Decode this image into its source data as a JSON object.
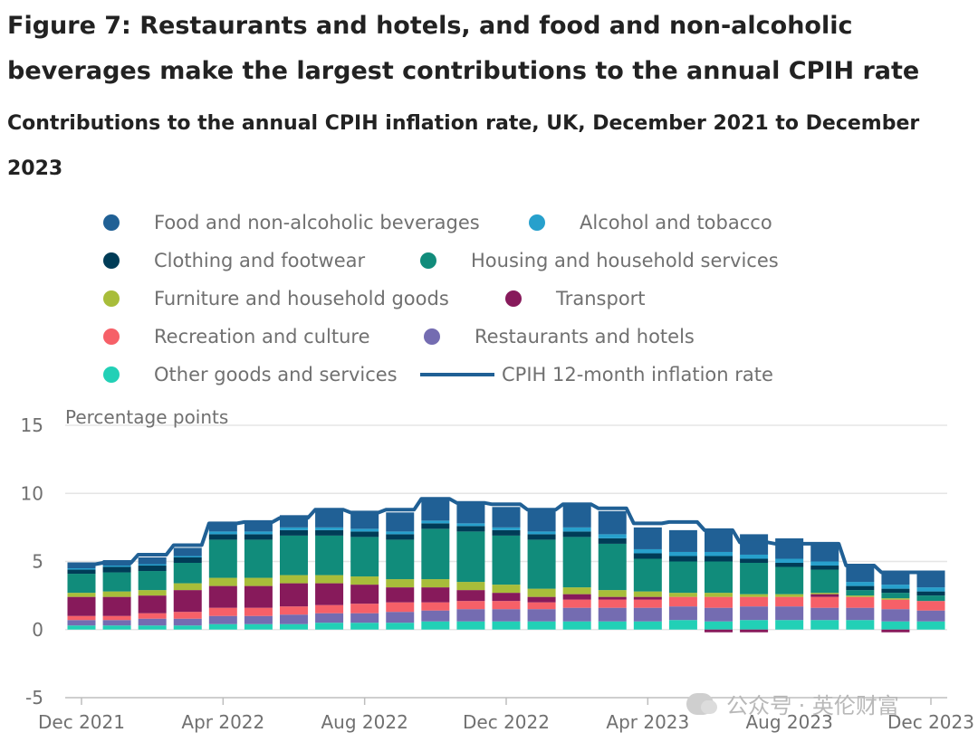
{
  "figure_title": "Figure 7: Restaurants and hotels, and food and non-alcoholic beverages make the largest contributions to the annual CPIH rate",
  "watermark": "公众号 · 英伦财富",
  "colors": {
    "food": "#206095",
    "alcohol": "#27a0cc",
    "clothing": "#003c57",
    "housing": "#118c7b",
    "furniture": "#a8bd3a",
    "transport": "#871a5b",
    "recreation": "#f66068",
    "restaurants": "#746cb1",
    "other": "#22d0b6",
    "line": "#206095",
    "grid": "#e5e5e5",
    "axis": "#bdbdbd"
  },
  "chart_data": {
    "type": "bar",
    "stacked": true,
    "title": "Contributions to the annual CPIH inflation rate, UK, December 2021 to December 2023",
    "ylabel": "Percentage points",
    "xlabel": "",
    "ylim": [
      -5,
      15
    ],
    "yticks": [
      "15",
      "10",
      "5",
      "0",
      "-5"
    ],
    "ytick_values": [
      15,
      10,
      5,
      0,
      -5
    ],
    "categories": [
      "Dec 2021",
      "Jan 2022",
      "Feb 2022",
      "Mar 2022",
      "Apr 2022",
      "May 2022",
      "Jun 2022",
      "Jul 2022",
      "Aug 2022",
      "Sep 2022",
      "Oct 2022",
      "Nov 2022",
      "Dec 2022",
      "Jan 2023",
      "Feb 2023",
      "Mar 2023",
      "Apr 2023",
      "May 2023",
      "Jun 2023",
      "Jul 2023",
      "Aug 2023",
      "Sep 2023",
      "Oct 2023",
      "Nov 2023",
      "Dec 2023"
    ],
    "xtick_labels": [
      {
        "index": 0,
        "label": "Dec 2021"
      },
      {
        "index": 4,
        "label": "Apr 2022"
      },
      {
        "index": 8,
        "label": "Aug 2022"
      },
      {
        "index": 12,
        "label": "Dec 2022"
      },
      {
        "index": 16,
        "label": "Apr 2023"
      },
      {
        "index": 20,
        "label": "Aug 2023"
      },
      {
        "index": 24,
        "label": "Dec 2023"
      }
    ],
    "legend_position": "top",
    "series": [
      {
        "key": "other",
        "name": "Other goods and services",
        "values": [
          0.3,
          0.3,
          0.3,
          0.3,
          0.4,
          0.4,
          0.4,
          0.5,
          0.5,
          0.5,
          0.6,
          0.6,
          0.6,
          0.6,
          0.6,
          0.6,
          0.6,
          0.7,
          0.6,
          0.7,
          0.7,
          0.7,
          0.7,
          0.6,
          0.6
        ]
      },
      {
        "key": "restaurants",
        "name": "Restaurants and hotels",
        "values": [
          0.4,
          0.4,
          0.5,
          0.5,
          0.6,
          0.6,
          0.7,
          0.7,
          0.7,
          0.8,
          0.8,
          0.9,
          0.9,
          0.9,
          1.0,
          1.0,
          1.0,
          1.0,
          1.0,
          1.0,
          1.0,
          0.9,
          0.9,
          0.9,
          0.8
        ]
      },
      {
        "key": "recreation",
        "name": "Recreation and culture",
        "values": [
          0.3,
          0.3,
          0.4,
          0.5,
          0.6,
          0.6,
          0.6,
          0.6,
          0.7,
          0.7,
          0.6,
          0.6,
          0.6,
          0.5,
          0.6,
          0.6,
          0.6,
          0.7,
          0.8,
          0.7,
          0.7,
          0.8,
          0.8,
          0.7,
          0.7
        ]
      },
      {
        "key": "transport",
        "name": "Transport",
        "values": [
          1.4,
          1.4,
          1.3,
          1.6,
          1.6,
          1.6,
          1.7,
          1.6,
          1.4,
          1.1,
          1.1,
          0.8,
          0.6,
          0.4,
          0.4,
          0.2,
          0.2,
          0.0,
          -0.2,
          -0.2,
          0.0,
          0.2,
          0.0,
          -0.2,
          0.0
        ]
      },
      {
        "key": "furniture",
        "name": "Furniture and household goods",
        "values": [
          0.3,
          0.4,
          0.4,
          0.5,
          0.6,
          0.6,
          0.6,
          0.6,
          0.6,
          0.6,
          0.6,
          0.6,
          0.6,
          0.6,
          0.5,
          0.5,
          0.4,
          0.3,
          0.3,
          0.2,
          0.2,
          0.1,
          0.1,
          0.1,
          0.0
        ]
      },
      {
        "key": "housing",
        "name": "Housing and household services",
        "values": [
          1.4,
          1.4,
          1.4,
          1.5,
          2.8,
          2.8,
          2.9,
          2.9,
          2.9,
          2.9,
          3.7,
          3.7,
          3.6,
          3.6,
          3.7,
          3.4,
          2.4,
          2.3,
          2.3,
          2.3,
          2.0,
          1.7,
          0.4,
          0.4,
          0.4
        ]
      },
      {
        "key": "clothing",
        "name": "Clothing and footwear",
        "values": [
          0.3,
          0.4,
          0.4,
          0.4,
          0.4,
          0.4,
          0.4,
          0.4,
          0.4,
          0.4,
          0.4,
          0.4,
          0.4,
          0.4,
          0.4,
          0.4,
          0.4,
          0.4,
          0.4,
          0.3,
          0.3,
          0.3,
          0.3,
          0.3,
          0.3
        ]
      },
      {
        "key": "alcohol",
        "name": "Alcohol and tobacco",
        "values": [
          0.1,
          0.1,
          0.1,
          0.1,
          0.2,
          0.2,
          0.2,
          0.2,
          0.2,
          0.2,
          0.2,
          0.2,
          0.2,
          0.2,
          0.3,
          0.3,
          0.3,
          0.3,
          0.3,
          0.3,
          0.3,
          0.3,
          0.3,
          0.3,
          0.3
        ]
      },
      {
        "key": "food",
        "name": "Food and non-alcoholic beverages",
        "values": [
          0.4,
          0.4,
          0.5,
          0.6,
          0.7,
          0.8,
          0.9,
          1.2,
          1.3,
          1.4,
          1.5,
          1.4,
          1.5,
          1.6,
          1.8,
          1.7,
          1.6,
          1.6,
          1.6,
          1.5,
          1.5,
          1.4,
          1.2,
          1.0,
          1.0
        ]
      }
    ],
    "line": {
      "key": "line",
      "name": "CPIH 12-month inflation rate",
      "values": [
        4.8,
        4.9,
        5.5,
        6.2,
        7.8,
        7.9,
        8.2,
        8.8,
        8.6,
        8.8,
        9.6,
        9.3,
        9.2,
        8.8,
        9.2,
        8.9,
        7.8,
        7.9,
        7.3,
        6.4,
        6.3,
        6.3,
        4.7,
        4.2,
        4.2
      ]
    },
    "legend": [
      {
        "key": "food",
        "name": "Food and non-alcoholic beverages",
        "kind": "dot"
      },
      {
        "key": "alcohol",
        "name": "Alcohol and tobacco",
        "kind": "dot"
      },
      {
        "key": "clothing",
        "name": "Clothing and footwear",
        "kind": "dot"
      },
      {
        "key": "housing",
        "name": "Housing and household services",
        "kind": "dot"
      },
      {
        "key": "furniture",
        "name": "Furniture and household goods",
        "kind": "dot"
      },
      {
        "key": "transport",
        "name": "Transport",
        "kind": "dot"
      },
      {
        "key": "recreation",
        "name": "Recreation and culture",
        "kind": "dot"
      },
      {
        "key": "restaurants",
        "name": "Restaurants and hotels",
        "kind": "dot"
      },
      {
        "key": "other",
        "name": "Other goods and services",
        "kind": "dot"
      },
      {
        "key": "line",
        "name": "CPIH 12-month inflation rate",
        "kind": "line"
      }
    ]
  }
}
